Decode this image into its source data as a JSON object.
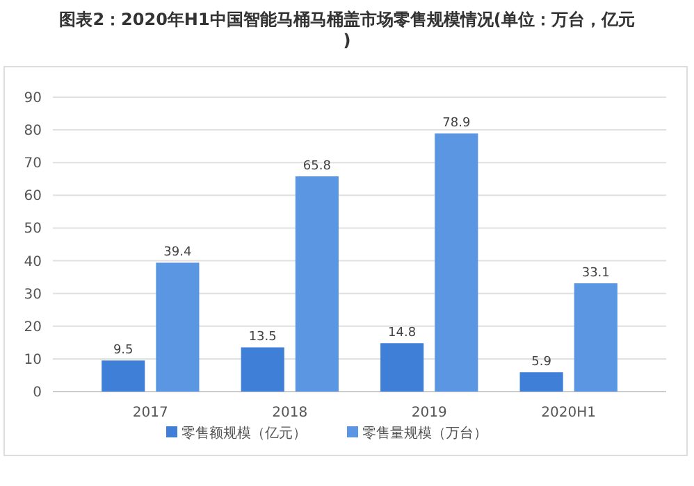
{
  "chart_data": {
    "type": "bar",
    "title": "图表2：2020年H1中国智能马桶马桶盖市场零售规模情况(单位：万台，亿元)",
    "categories": [
      "2017",
      "2018",
      "2019",
      "2020H1"
    ],
    "series": [
      {
        "name": "零售额规模（亿元）",
        "color": "#3f7fd8",
        "values": [
          9.5,
          13.5,
          14.8,
          5.9
        ]
      },
      {
        "name": "零售量规模（万台）",
        "color": "#5b96e3",
        "values": [
          39.4,
          65.8,
          78.9,
          33.1
        ]
      }
    ],
    "ylim": [
      0,
      90
    ],
    "yticks": [
      0,
      10,
      20,
      30,
      40,
      50,
      60,
      70,
      80,
      90
    ],
    "grid": "y",
    "legend": "bottom",
    "data_labels": true
  }
}
